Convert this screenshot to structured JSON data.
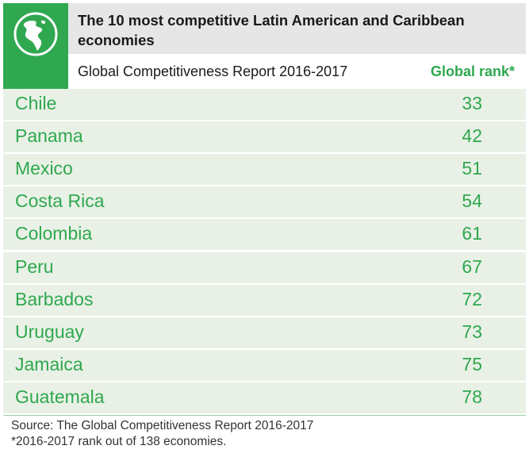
{
  "header": {
    "title": "The 10 most competitive Latin American and Caribbean economies",
    "subhead": "Global Competitiveness Report 2016-2017",
    "rank_header": "Global rank*"
  },
  "colors": {
    "accent": "#2fa84f",
    "row_background": "#e9f1e6",
    "title_background": "#e6e6e6"
  },
  "icons": {
    "logo": "globe-americas-icon"
  },
  "chart_data": {
    "type": "table",
    "columns": [
      "Global Competitiveness Report 2016-2017",
      "Global rank*"
    ],
    "rows": [
      {
        "country": "Chile",
        "rank": 33
      },
      {
        "country": "Panama",
        "rank": 42
      },
      {
        "country": "Mexico",
        "rank": 51
      },
      {
        "country": "Costa Rica",
        "rank": 54
      },
      {
        "country": "Colombia",
        "rank": 61
      },
      {
        "country": "Peru",
        "rank": 67
      },
      {
        "country": "Barbados",
        "rank": 72
      },
      {
        "country": "Uruguay",
        "rank": 73
      },
      {
        "country": "Jamaica",
        "rank": 75
      },
      {
        "country": "Guatemala",
        "rank": 78
      }
    ]
  },
  "footer": {
    "source": "Source: The Global Competitiveness Report 2016-2017",
    "note": "*2016-2017 rank out of 138 economies."
  }
}
